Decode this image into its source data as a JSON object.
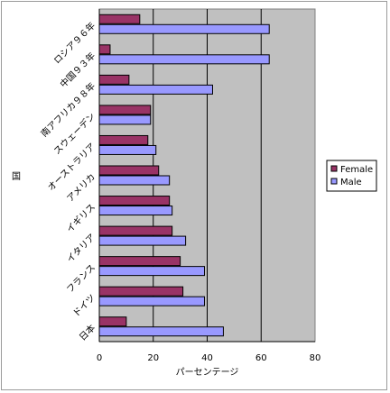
{
  "chart_data": {
    "type": "bar",
    "orientation": "horizontal",
    "title": "",
    "xlabel": "パーセンテージ",
    "ylabel": "国",
    "xlim": [
      0,
      80
    ],
    "xticks": [
      0,
      20,
      40,
      60,
      80
    ],
    "grid": true,
    "legend_position": "right",
    "categories": [
      "日本",
      "ドイツ",
      "フランス",
      "イタリア",
      "イギリス",
      "アメリカ",
      "オーストラリア",
      "スウェーデン",
      "南アフリカ９８年",
      "中国９３年",
      "ロシア９６年"
    ],
    "series": [
      {
        "name": "Female",
        "color": "#993366",
        "values": [
          10,
          31,
          30,
          27,
          26,
          22,
          18,
          19,
          11,
          4,
          15
        ]
      },
      {
        "name": "Male",
        "color": "#9999ff",
        "values": [
          46,
          39,
          39,
          32,
          27,
          26,
          21,
          19,
          42,
          63,
          63
        ]
      }
    ],
    "plot_background": "#c0c0c0"
  }
}
